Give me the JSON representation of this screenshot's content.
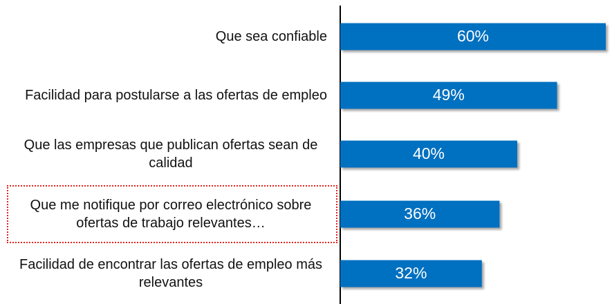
{
  "chart_data": {
    "type": "bar",
    "orientation": "horizontal",
    "categories": [
      "Que sea confiable",
      "Facilidad para postularse a las ofertas de empleo",
      "Que las empresas que publican ofertas sean de calidad",
      "Que me notifique por correo electrónico sobre ofertas de trabajo relevantes…",
      "Facilidad de encontrar las ofertas de empleo más relevantes"
    ],
    "values": [
      60,
      49,
      40,
      36,
      32
    ],
    "value_labels": [
      "60%",
      "49%",
      "40%",
      "36%",
      "32%"
    ],
    "color": "#0070c0",
    "xlim": [
      0,
      60
    ]
  }
}
